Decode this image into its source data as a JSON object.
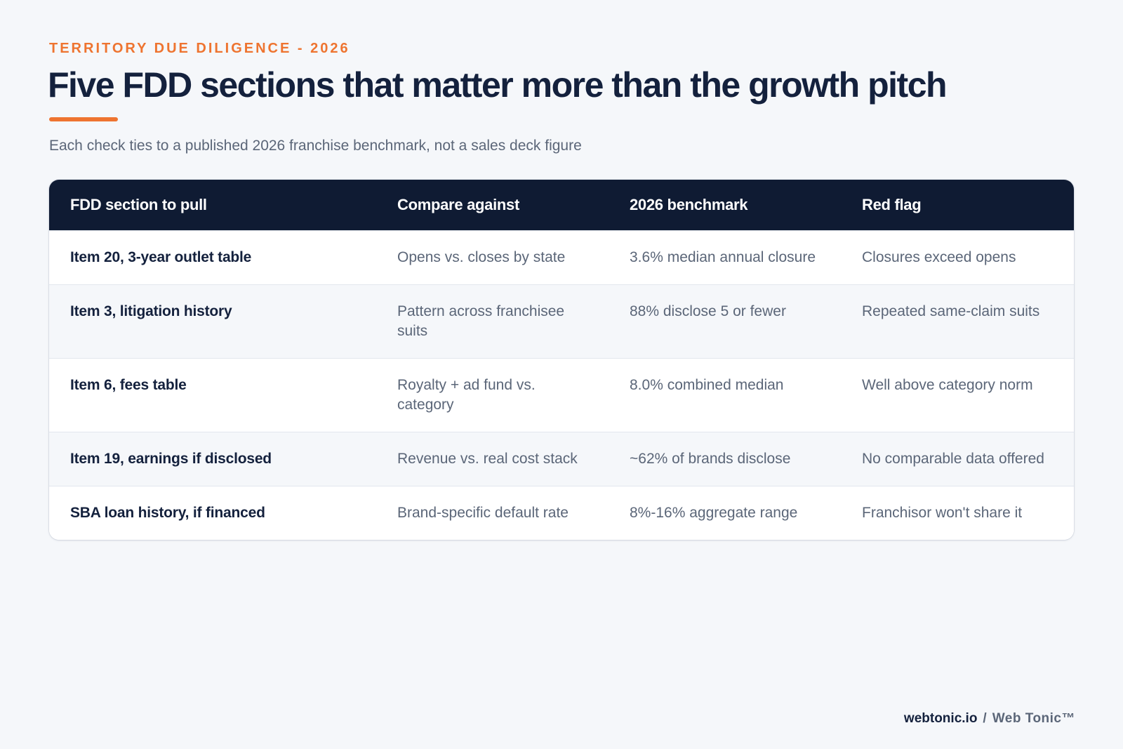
{
  "header": {
    "eyebrow": "TERRITORY DUE DILIGENCE - 2026",
    "title": "Five FDD sections that matter more than the growth pitch",
    "subtitle": "Each check ties to a published 2026 franchise benchmark, not a sales deck figure"
  },
  "table": {
    "headers": [
      "FDD section to pull",
      "Compare against",
      "2026 benchmark",
      "Red flag"
    ],
    "rows": [
      [
        "Item 20, 3-year outlet table",
        "Opens vs. closes by state",
        "3.6% median annual closure",
        "Closures exceed opens"
      ],
      [
        "Item 3, litigation history",
        "Pattern across franchisee suits",
        "88% disclose 5 or fewer",
        "Repeated same-claim suits"
      ],
      [
        "Item 6, fees table",
        "Royalty + ad fund vs. category",
        "8.0% combined median",
        "Well above category norm"
      ],
      [
        "Item 19, earnings if disclosed",
        "Revenue vs. real cost stack",
        "~62% of brands disclose",
        "No comparable data offered"
      ],
      [
        "SBA loan history, if financed",
        "Brand-specific default rate",
        "8%-16% aggregate range",
        "Franchisor won't share it"
      ]
    ]
  },
  "footer": {
    "site": "webtonic.io",
    "separator": "/",
    "brand": "Web Tonic™"
  },
  "colors": {
    "accent": "#ee7430",
    "navy": "#0f1b33",
    "text_dark": "#14213d",
    "text_muted": "#5b6678",
    "background": "#f5f7fa"
  }
}
